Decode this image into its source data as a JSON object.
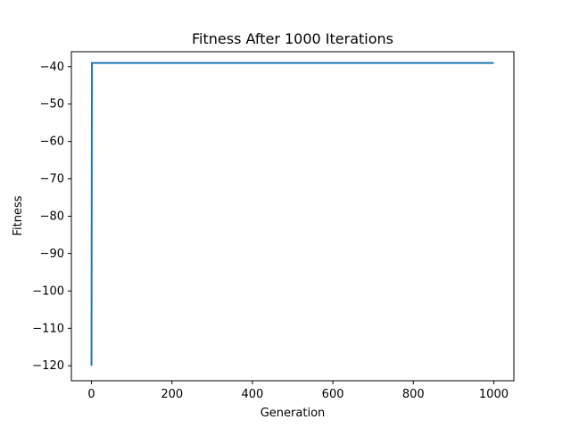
{
  "chart_data": {
    "type": "line",
    "title": "Fitness After 1000 Iterations",
    "xlabel": "Generation",
    "ylabel": "Fitness",
    "xlim": [
      -50,
      1050
    ],
    "ylim": [
      -124,
      -36
    ],
    "xticks": [
      0,
      200,
      400,
      600,
      800,
      1000
    ],
    "yticks": [
      -40,
      -50,
      -60,
      -70,
      -80,
      -90,
      -100,
      -110,
      -120
    ],
    "x_tick_labels": [
      "0",
      "200",
      "400",
      "600",
      "800",
      "1000"
    ],
    "y_tick_labels": [
      "−40",
      "−50",
      "−60",
      "−70",
      "−80",
      "−90",
      "−100",
      "−110",
      "−120"
    ],
    "grid": false,
    "series": [
      {
        "color": "#1f77b4",
        "x": [
          0,
          1,
          2,
          1000
        ],
        "y": [
          -120,
          -39,
          -39,
          -39
        ]
      }
    ]
  }
}
